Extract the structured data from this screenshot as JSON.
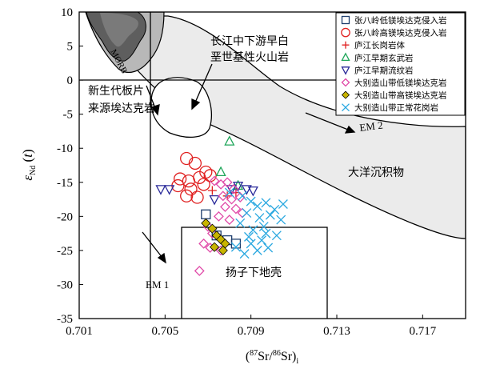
{
  "chart_data": {
    "type": "scatter",
    "xlabel": "(87Sr/86Sr)i",
    "ylabel": "εNd (t)",
    "xlim": [
      0.701,
      0.719
    ],
    "ylim": [
      -35,
      10
    ],
    "xticks": [
      "0.701",
      "0.705",
      "0.709",
      "0.713",
      "0.717"
    ],
    "xtick_values": [
      0.701,
      0.705,
      0.709,
      0.713,
      0.717
    ],
    "yticks": [
      "10",
      "5",
      "0",
      "-5",
      "-10",
      "-15",
      "-20",
      "-25",
      "-30",
      "-35"
    ],
    "ytick_values": [
      10,
      5,
      0,
      -5,
      -10,
      -15,
      -20,
      -25,
      -30,
      -35
    ],
    "legend_position": "top-right",
    "series": [
      {
        "name": "张八岭低镁埃达克侵入岩",
        "marker": "square",
        "color": "#1f3f6e",
        "x": [
          0.7069,
          0.7074,
          0.7079,
          0.7083
        ],
        "y": [
          -19.7,
          -22.8,
          -23.5,
          -24.0
        ]
      },
      {
        "name": "张八岭高镁埃达克侵入岩",
        "marker": "circle",
        "color": "#e02020",
        "x": [
          0.706,
          0.7064,
          0.7069,
          0.7057,
          0.7061,
          0.7066,
          0.7071,
          0.7056,
          0.7062,
          0.7068,
          0.706,
          0.7065
        ],
        "y": [
          -11.5,
          -12.2,
          -13.5,
          -14.5,
          -14.8,
          -14.3,
          -14.0,
          -15.5,
          -16.0,
          -15.3,
          -17.0,
          -17.2
        ]
      },
      {
        "name": "庐江长岗岩体",
        "marker": "plus",
        "color": "#e02020",
        "x": [
          0.7072,
          0.7079,
          0.7083
        ],
        "y": [
          -16.2,
          -17.0,
          -16.5
        ]
      },
      {
        "name": "庐江早期玄武岩",
        "marker": "triangle-up",
        "color": "#1fa65a",
        "x": [
          0.708,
          0.7076,
          0.7084
        ],
        "y": [
          -9.0,
          -13.5,
          -15.5
        ]
      },
      {
        "name": "庐江早期流纹岩",
        "marker": "triangle-down",
        "color": "#2a2a9a",
        "x": [
          0.7048,
          0.7052,
          0.7073,
          0.7081,
          0.7084,
          0.7088,
          0.7091
        ],
        "y": [
          -16.0,
          -16.0,
          -17.5,
          -16.0,
          -15.5,
          -16.0,
          -16.2
        ]
      },
      {
        "name": "大别造山带低镁埃达克岩",
        "marker": "diamond",
        "color": "#e04aa8",
        "x": [
          0.7073,
          0.7076,
          0.7079,
          0.7082,
          0.7077,
          0.7081,
          0.7085,
          0.7078,
          0.7083,
          0.7086,
          0.708,
          0.7075,
          0.707,
          0.7072,
          0.7068,
          0.7071,
          0.7076,
          0.7066
        ],
        "y": [
          -14.8,
          -15.3,
          -15.0,
          -16.0,
          -17.0,
          -17.5,
          -17.2,
          -18.6,
          -18.9,
          -19.5,
          -20.5,
          -20.0,
          -21.5,
          -22.5,
          -24.0,
          -24.6,
          -25.0,
          -28.0
        ]
      },
      {
        "name": "大别造山带高镁埃达克岩",
        "marker": "diamond-filled",
        "color": "#c8b400",
        "x": [
          0.7069,
          0.7072,
          0.7074,
          0.7076,
          0.7078,
          0.7073,
          0.7077
        ],
        "y": [
          -21.0,
          -21.8,
          -22.8,
          -23.4,
          -24.0,
          -24.5,
          -25.0
        ]
      },
      {
        "name": "大别造山带正常花岗岩",
        "marker": "x",
        "color": "#2aa8e0",
        "x": [
          0.708,
          0.7086,
          0.709,
          0.7093,
          0.7097,
          0.7101,
          0.7105,
          0.7088,
          0.7094,
          0.7099,
          0.7104,
          0.7085,
          0.7091,
          0.7096,
          0.7102,
          0.7089,
          0.7095,
          0.7083,
          0.709,
          0.7098,
          0.7087,
          0.7093,
          0.7097
        ],
        "y": [
          -16.5,
          -17.0,
          -17.8,
          -18.5,
          -18.0,
          -19.0,
          -18.2,
          -19.5,
          -20.2,
          -19.8,
          -20.5,
          -21.0,
          -22.0,
          -21.5,
          -22.8,
          -23.0,
          -23.5,
          -24.5,
          -24.0,
          -24.6,
          -25.5,
          -25.0,
          -22.5
        ]
      }
    ],
    "annotations": [
      {
        "text": "MORB"
      },
      {
        "text": "新生代板片"
      },
      {
        "text": "来源埃达克岩"
      },
      {
        "text": "长江中下游早白"
      },
      {
        "text": "垩世基性火山岩"
      },
      {
        "text": "EM 2"
      },
      {
        "text": "大洋沉积物"
      },
      {
        "text": "EM 1"
      },
      {
        "text": "扬子下地壳"
      }
    ]
  }
}
